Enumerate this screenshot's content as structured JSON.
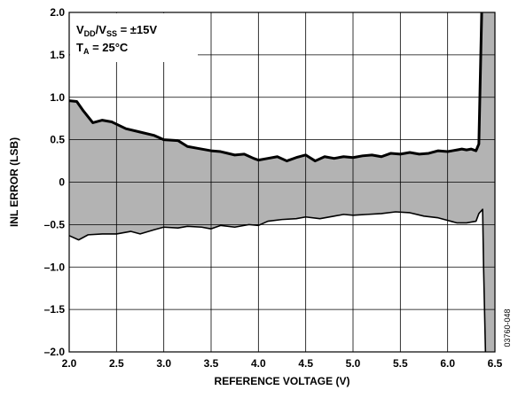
{
  "chart_data": {
    "type": "area",
    "xlabel": "REFERENCE VOLTAGE (V)",
    "ylabel": "INL ERROR (LSB)",
    "xlim": [
      2.0,
      6.5
    ],
    "ylim": [
      -2.0,
      2.0
    ],
    "x_ticks": [
      "2.0",
      "2.5",
      "3.0",
      "3.5",
      "4.0",
      "4.5",
      "5.0",
      "5.5",
      "6.0",
      "6.5"
    ],
    "y_ticks": [
      "2.0",
      "1.5",
      "1.0",
      "0.5",
      "0",
      "–0.5",
      "–1.0",
      "–1.5",
      "–2.0"
    ],
    "grid": true,
    "annotation": {
      "line1": {
        "base": "V",
        "sub1": "DD",
        "mid": "/V",
        "sub2": "SS",
        "rest": " = ±15V"
      },
      "line2": {
        "base": "T",
        "sub": "A",
        "rest": " = 25°C"
      }
    },
    "figure_code": "03760-048",
    "fill_color": "#b3b3b3",
    "series": [
      {
        "role": "upper",
        "x": [
          2.0,
          2.08,
          2.15,
          2.25,
          2.35,
          2.45,
          2.6,
          2.75,
          2.9,
          3.0,
          3.15,
          3.25,
          3.35,
          3.5,
          3.6,
          3.75,
          3.85,
          3.95,
          4.0,
          4.1,
          4.2,
          4.3,
          4.4,
          4.5,
          4.6,
          4.7,
          4.8,
          4.9,
          5.0,
          5.1,
          5.2,
          5.3,
          5.4,
          5.5,
          5.6,
          5.7,
          5.8,
          5.9,
          6.0,
          6.05,
          6.1,
          6.15,
          6.2,
          6.25,
          6.3,
          6.33,
          6.36
        ],
        "values": [
          0.96,
          0.95,
          0.84,
          0.7,
          0.73,
          0.71,
          0.63,
          0.59,
          0.55,
          0.5,
          0.49,
          0.42,
          0.4,
          0.37,
          0.36,
          0.32,
          0.33,
          0.28,
          0.26,
          0.28,
          0.3,
          0.25,
          0.29,
          0.32,
          0.25,
          0.3,
          0.28,
          0.3,
          0.29,
          0.31,
          0.32,
          0.3,
          0.34,
          0.33,
          0.35,
          0.33,
          0.34,
          0.37,
          0.36,
          0.37,
          0.38,
          0.39,
          0.38,
          0.39,
          0.37,
          0.45,
          2.0
        ]
      },
      {
        "role": "lower",
        "x": [
          2.0,
          2.1,
          2.2,
          2.35,
          2.5,
          2.65,
          2.75,
          2.9,
          3.0,
          3.15,
          3.25,
          3.4,
          3.5,
          3.6,
          3.75,
          3.9,
          4.0,
          4.1,
          4.25,
          4.4,
          4.5,
          4.65,
          4.8,
          4.9,
          5.0,
          5.15,
          5.3,
          5.45,
          5.6,
          5.75,
          5.9,
          6.0,
          6.1,
          6.2,
          6.3,
          6.33,
          6.37,
          6.38,
          6.4
        ],
        "values": [
          -0.63,
          -0.68,
          -0.62,
          -0.61,
          -0.61,
          -0.58,
          -0.61,
          -0.56,
          -0.53,
          -0.54,
          -0.52,
          -0.53,
          -0.55,
          -0.51,
          -0.53,
          -0.5,
          -0.51,
          -0.46,
          -0.44,
          -0.43,
          -0.41,
          -0.43,
          -0.4,
          -0.38,
          -0.39,
          -0.38,
          -0.37,
          -0.35,
          -0.36,
          -0.4,
          -0.42,
          -0.45,
          -0.48,
          -0.48,
          -0.46,
          -0.37,
          -0.32,
          -1.0,
          -2.0
        ]
      }
    ]
  }
}
